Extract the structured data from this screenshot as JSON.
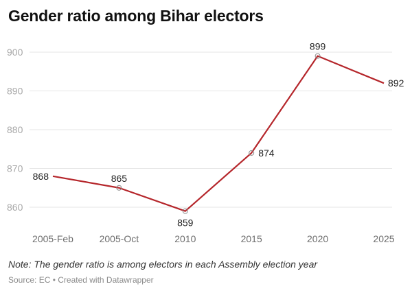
{
  "chart_data": {
    "type": "line",
    "title": "Gender ratio among Bihar electors",
    "xlabel": "",
    "ylabel": "",
    "categories": [
      "2005-Feb",
      "2005-Oct",
      "2010",
      "2015",
      "2020",
      "2025"
    ],
    "series": [
      {
        "name": "Gender ratio",
        "values": [
          868,
          865,
          859,
          874,
          899,
          892
        ],
        "color": "#b5262b"
      }
    ],
    "data_labels": [
      "868",
      "865",
      "859",
      "874",
      "899",
      "892"
    ],
    "yticks": [
      860,
      870,
      880,
      890,
      900
    ],
    "ytick_labels": [
      "860",
      "870",
      "880",
      "890",
      "900"
    ],
    "ylim": [
      860,
      900
    ],
    "grid": true,
    "legend": "none",
    "note": "Note: The gender ratio is among electors in each Assembly election year",
    "source": "Source: EC • Created with Datawrapper"
  }
}
